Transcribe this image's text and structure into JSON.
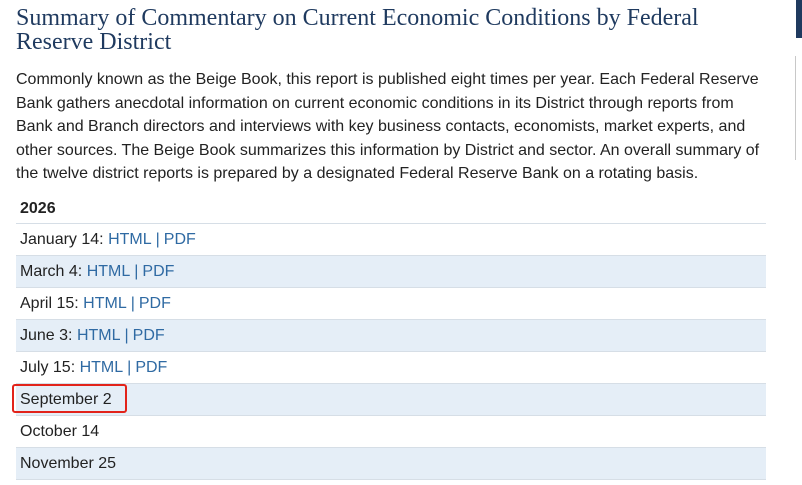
{
  "page": {
    "title": "Summary of Commentary on Current Economic Conditions by Federal Reserve District",
    "intro": "Commonly known as the Beige Book, this report is published eight times per year. Each Federal Reserve Bank gathers anecdotal information on current economic conditions in its District through reports from Bank and Branch directors and interviews with key business contacts, economists, market experts, and other sources. The Beige Book summarizes this information by District and sector. An overall summary of the twelve district reports is prepared by a designated Federal Reserve Bank on a rotating basis."
  },
  "schedule": {
    "year": "2026",
    "separator": "|",
    "html_label": "HTML",
    "pdf_label": "PDF",
    "entries": [
      {
        "date_label": "January 14:"
      },
      {
        "date_label": "March 4:"
      },
      {
        "date_label": "April 15:"
      },
      {
        "date_label": "June 3:"
      },
      {
        "date_label": "July 15:"
      },
      {
        "date_label": "September 2"
      },
      {
        "date_label": "October 14"
      },
      {
        "date_label": "November 25"
      }
    ]
  },
  "colors": {
    "title": "#1f3a5f",
    "link": "#2f6aa3",
    "row_alt_bg": "#e5eef7",
    "row_border": "#d6dee6",
    "highlight_border": "#e2231a"
  }
}
